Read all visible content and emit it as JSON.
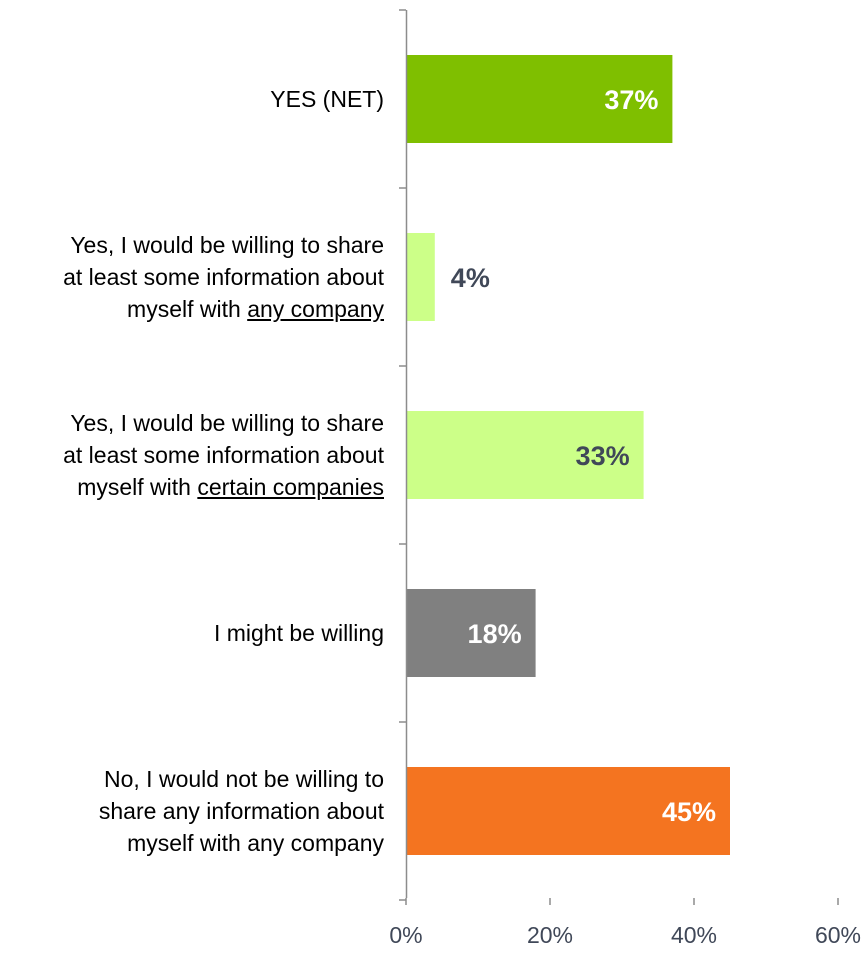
{
  "chart_data": {
    "type": "bar",
    "orientation": "horizontal",
    "categories": [
      "YES (NET)",
      "Yes, I would be willing to share at least some information about myself with any company",
      "Yes, I would be willing to share at least some information about myself with certain companies",
      "I might be willing",
      "No, I would not be willing to share any information about myself with any company"
    ],
    "category_lines": [
      [
        {
          "text": "YES (NET)"
        }
      ],
      [
        {
          "text": "Yes, I would be willing to share"
        },
        {
          "text": "at least some information about"
        },
        {
          "text": "myself with ",
          "underline": "any company"
        }
      ],
      [
        {
          "text": "Yes, I would be willing to share"
        },
        {
          "text": "at least some information about"
        },
        {
          "text": "myself with ",
          "underline": "certain companies"
        }
      ],
      [
        {
          "text": "I might be willing"
        }
      ],
      [
        {
          "text": "No, I would not be willing to"
        },
        {
          "text": "share any information about"
        },
        {
          "text": "myself with any company"
        }
      ]
    ],
    "values": [
      37,
      4,
      33,
      18,
      45
    ],
    "data_labels": [
      "37%",
      "4%",
      "33%",
      "18%",
      "45%"
    ],
    "bar_colors": [
      "#7fbf00",
      "#ccff88",
      "#ccff88",
      "#808080",
      "#f47420"
    ],
    "label_colors": [
      "#ffffff",
      "#404858",
      "#404858",
      "#ffffff",
      "#ffffff"
    ],
    "xlim": [
      0,
      60
    ],
    "xticks": [
      0,
      20,
      40,
      60
    ],
    "xtick_labels": [
      "0%",
      "20%",
      "40%",
      "60%"
    ],
    "grid": false,
    "title": "",
    "xlabel": "",
    "ylabel": ""
  }
}
